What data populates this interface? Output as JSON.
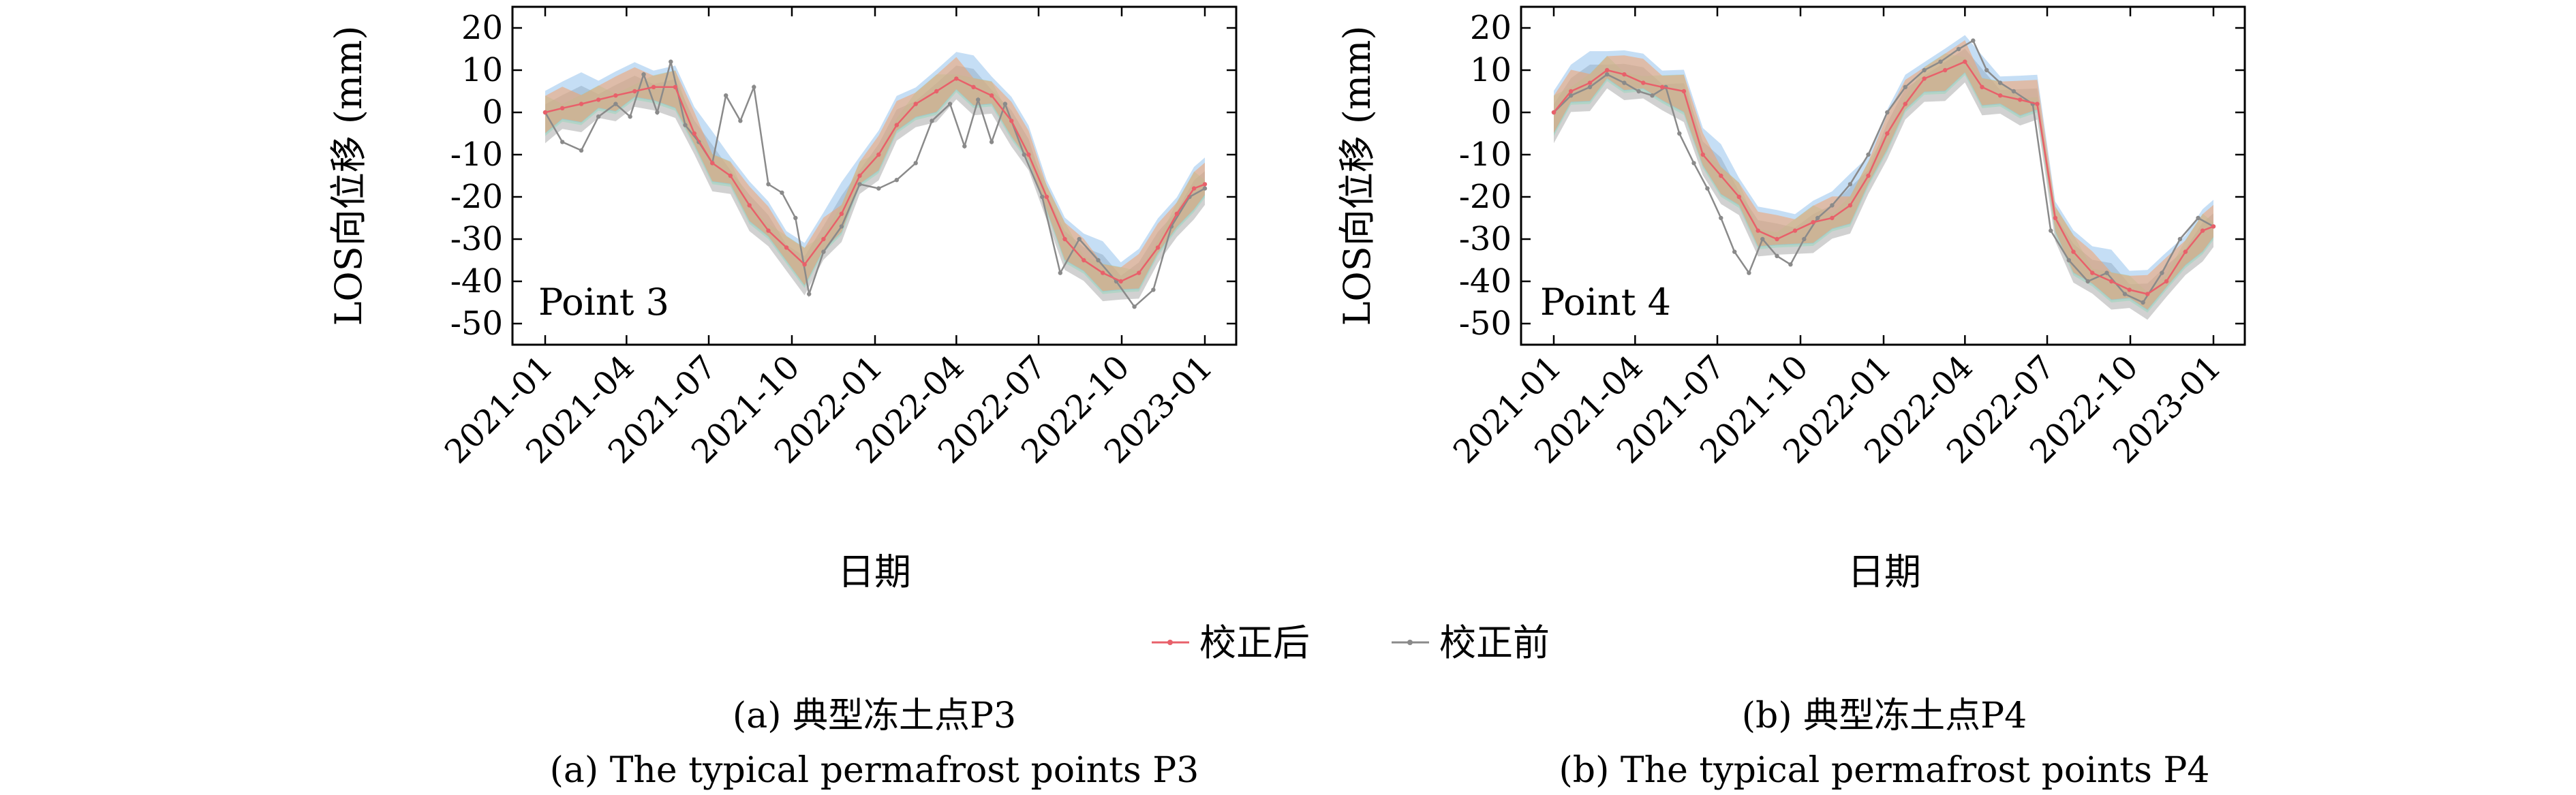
{
  "figure": {
    "caption_a_cn": "(a) 典型冻土点P3",
    "caption_a_en": "(a) The typical permafrost points P3",
    "caption_b_cn": "(b) 典型冻土点P4",
    "caption_b_en": "(b) The typical permafrost points P4"
  },
  "legend": {
    "corrected": "校正后",
    "uncorrected": "校正前",
    "corrected_color": "#e8606a",
    "uncorrected_color": "#8a8a8a"
  },
  "colors": {
    "band_orange": "#f2a06a",
    "band_blue": "#7fb6e8",
    "band_green": "#8fd8b8",
    "band_gray": "#9a9a9a"
  },
  "chart_data": [
    {
      "type": "line",
      "panel": "a",
      "annotation": "Point 3",
      "xlabel": "日期",
      "ylabel": "LOS向位移 (mm)",
      "ylim": [
        -55,
        25
      ],
      "yticks": [
        20,
        10,
        0,
        -10,
        -20,
        -30,
        -40,
        -50
      ],
      "xticks": [
        "2021-01",
        "2021-04",
        "2021-07",
        "2021-10",
        "2022-01",
        "2022-04",
        "2022-07",
        "2022-10",
        "2023-01"
      ],
      "xlim": [
        "2021-01-01",
        "2023-01-01"
      ],
      "series": [
        {
          "name": "校正后",
          "x": [
            "2021-01-01",
            "2021-01-20",
            "2021-02-10",
            "2021-03-01",
            "2021-03-20",
            "2021-04-10",
            "2021-05-01",
            "2021-05-25",
            "2021-06-15",
            "2021-07-05",
            "2021-07-25",
            "2021-08-15",
            "2021-09-05",
            "2021-09-25",
            "2021-10-15",
            "2021-11-05",
            "2021-11-25",
            "2021-12-15",
            "2022-01-05",
            "2022-01-25",
            "2022-02-15",
            "2022-03-10",
            "2022-04-01",
            "2022-04-20",
            "2022-05-10",
            "2022-06-01",
            "2022-06-20",
            "2022-07-10",
            "2022-07-30",
            "2022-08-20",
            "2022-09-10",
            "2022-09-30",
            "2022-10-20",
            "2022-11-10",
            "2022-12-01",
            "2022-12-20",
            "2023-01-01"
          ],
          "y": [
            0,
            1,
            2,
            3,
            4,
            5,
            6,
            6,
            -5,
            -12,
            -15,
            -22,
            -28,
            -32,
            -36,
            -30,
            -24,
            -15,
            -10,
            -3,
            2,
            5,
            8,
            6,
            4,
            -2,
            -10,
            -20,
            -30,
            -35,
            -38,
            -40,
            -38,
            -32,
            -24,
            -18,
            -17
          ]
        },
        {
          "name": "校正前",
          "x": [
            "2021-01-01",
            "2021-01-20",
            "2021-02-10",
            "2021-03-01",
            "2021-03-20",
            "2021-04-05",
            "2021-04-20",
            "2021-05-05",
            "2021-05-20",
            "2021-06-05",
            "2021-06-20",
            "2021-07-05",
            "2021-07-20",
            "2021-08-05",
            "2021-08-20",
            "2021-09-05",
            "2021-09-20",
            "2021-10-05",
            "2021-10-20",
            "2021-11-05",
            "2021-11-25",
            "2021-12-15",
            "2022-01-05",
            "2022-01-25",
            "2022-02-15",
            "2022-03-05",
            "2022-03-25",
            "2022-04-10",
            "2022-04-25",
            "2022-05-10",
            "2022-05-25",
            "2022-06-15",
            "2022-07-05",
            "2022-07-25",
            "2022-08-15",
            "2022-09-05",
            "2022-09-25",
            "2022-10-15",
            "2022-11-05",
            "2022-11-25",
            "2022-12-15",
            "2023-01-01"
          ],
          "y": [
            0,
            -7,
            -9,
            -1,
            2,
            -1,
            9,
            0,
            12,
            -3,
            -7,
            -12,
            4,
            -2,
            6,
            -17,
            -19,
            -25,
            -43,
            -33,
            -27,
            -17,
            -18,
            -16,
            -12,
            -2,
            2,
            -8,
            3,
            -7,
            2,
            -10,
            -20,
            -38,
            -30,
            -35,
            -40,
            -46,
            -42,
            -27,
            -20,
            -18
          ]
        }
      ]
    },
    {
      "type": "line",
      "panel": "b",
      "annotation": "Point 4",
      "xlabel": "日期",
      "ylabel": "LOS向位移 (mm)",
      "ylim": [
        -55,
        25
      ],
      "yticks": [
        20,
        10,
        0,
        -10,
        -20,
        -30,
        -40,
        -50
      ],
      "xticks": [
        "2021-01",
        "2021-04",
        "2021-07",
        "2021-10",
        "2022-01",
        "2022-04",
        "2022-07",
        "2022-10",
        "2023-01"
      ],
      "xlim": [
        "2021-01-01",
        "2023-01-01"
      ],
      "series": [
        {
          "name": "校正后",
          "x": [
            "2021-01-01",
            "2021-01-20",
            "2021-02-10",
            "2021-03-01",
            "2021-03-20",
            "2021-04-10",
            "2021-05-01",
            "2021-05-25",
            "2021-06-15",
            "2021-07-05",
            "2021-07-25",
            "2021-08-15",
            "2021-09-05",
            "2021-09-25",
            "2021-10-15",
            "2021-11-05",
            "2021-11-25",
            "2021-12-15",
            "2022-01-05",
            "2022-01-25",
            "2022-02-15",
            "2022-03-10",
            "2022-04-01",
            "2022-04-20",
            "2022-05-10",
            "2022-06-01",
            "2022-06-20",
            "2022-07-10",
            "2022-07-30",
            "2022-08-20",
            "2022-09-10",
            "2022-09-30",
            "2022-10-20",
            "2022-11-10",
            "2022-12-01",
            "2022-12-20",
            "2023-01-01"
          ],
          "y": [
            0,
            5,
            7,
            10,
            9,
            7,
            6,
            5,
            -10,
            -15,
            -20,
            -28,
            -30,
            -28,
            -26,
            -25,
            -22,
            -15,
            -5,
            2,
            8,
            10,
            12,
            6,
            4,
            3,
            2,
            -25,
            -33,
            -38,
            -40,
            -42,
            -43,
            -40,
            -33,
            -28,
            -27
          ]
        },
        {
          "name": "校正前",
          "x": [
            "2021-01-01",
            "2021-01-20",
            "2021-02-10",
            "2021-03-01",
            "2021-03-20",
            "2021-04-05",
            "2021-04-20",
            "2021-05-05",
            "2021-05-20",
            "2021-06-05",
            "2021-06-20",
            "2021-07-05",
            "2021-07-20",
            "2021-08-05",
            "2021-08-20",
            "2021-09-05",
            "2021-09-20",
            "2021-10-05",
            "2021-10-20",
            "2021-11-05",
            "2021-11-25",
            "2021-12-15",
            "2022-01-05",
            "2022-01-25",
            "2022-02-15",
            "2022-03-05",
            "2022-03-25",
            "2022-04-10",
            "2022-04-25",
            "2022-05-10",
            "2022-05-25",
            "2022-06-15",
            "2022-07-05",
            "2022-07-25",
            "2022-08-15",
            "2022-09-05",
            "2022-09-25",
            "2022-10-15",
            "2022-11-05",
            "2022-11-25",
            "2022-12-15",
            "2023-01-01"
          ],
          "y": [
            0,
            4,
            6,
            9,
            7,
            5,
            4,
            6,
            -5,
            -12,
            -18,
            -25,
            -33,
            -38,
            -30,
            -34,
            -36,
            -30,
            -25,
            -22,
            -17,
            -10,
            0,
            6,
            10,
            12,
            15,
            17,
            10,
            7,
            5,
            2,
            -28,
            -35,
            -40,
            -38,
            -43,
            -45,
            -38,
            -30,
            -25,
            -27
          ]
        }
      ]
    }
  ]
}
